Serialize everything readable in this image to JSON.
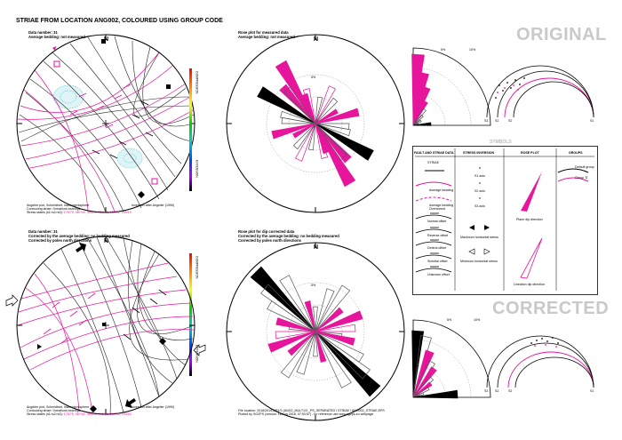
{
  "title": "STRIAE FROM LOCATION ANG002, COLOURED USING GROUP CODE",
  "labels": {
    "original": "ORIGINAL",
    "corrected": "CORRECTED",
    "north": "N",
    "symbols": "SYMBOLS"
  },
  "top_left": {
    "line1": "Data number: 31",
    "line2": "Average bedding: not measured",
    "foot1": "Angelier plot, Schmidtnet, lower hemisphere",
    "foot2": "Contouring striae / lineations bearings",
    "foot3": "Stress states (s1>s2>s3):",
    "foot3b": "175/75, 087/00, 353/13, 351/75, 064/01, 155/13",
    "inversion": "Inversion after Angelier (1990)",
    "compression": "COMPRESSION",
    "extension": "EXTENSION"
  },
  "top_middle": {
    "line1": "Rose plot for measured data",
    "line2": "Average bedding: not measured",
    "ring_label": "5%"
  },
  "bottom_left": {
    "line1": "Data number: 31",
    "line2": "Corrected by the average bedding: no bedding measured",
    "line3": "Corrected by poles north directions",
    "foot1": "Angelier plot, Schmidtnet, lower hemisphere",
    "foot2": "Contouring striae / lineations bearings",
    "foot3": "Stress states (s1>s2>s3):",
    "foot3b": "175/75, 087/00, 353/13, 015/05, 269/05, 109/23",
    "inversion": "Inversion after Angelier (1990)",
    "compression": "COMPRESSION",
    "extension": "EXTENSION"
  },
  "bottom_middle": {
    "line1": "Rose plot for dip corrected data",
    "line2": "Corrected by the average bedding: no bedding measured",
    "line3": "Corrected by poles north directions",
    "ring_label": "5%",
    "file1": "File location: 2018/2019-DR1/2 (ANG2_MULT1/3 _PS_SEPARATED / STRIAE / ANG002_STRIAE.EPS",
    "file2": "Plotted by SG2PS (version: 16 Aug 2018, 07:53:57) - for reference use www.sg2ps.eu webpage"
  },
  "quarter_rose": {
    "top_pct_1": "5%",
    "top_pct_2": "10%",
    "bottom_pct_1": "5%",
    "bottom_pct_2": "10%"
  },
  "arcs": {
    "s3": "S3",
    "s2": "S2",
    "s1": "S1"
  },
  "legend": {
    "col1": "FAULT AND STRIAE DATA",
    "col2": "STRESS INVERSION",
    "col3": "ROSE PLOT",
    "col4": "GROUPS",
    "striae": "STRIAE",
    "avg_bedding": "Average bedding",
    "avg_bedding_ov": "Average bedding Overturned",
    "normal": "Normal offset",
    "reverse": "Reverse offset",
    "dextral": "Dextral offset",
    "sinistral": "Sinistral offset",
    "unknown": "Unknown offset",
    "s1axis": "S1 axis",
    "s2axis": "S2 axis",
    "s3axis": "S3 axis",
    "max_h": "Maximum horizontal stress",
    "min_h": "Minimum horizontal stress",
    "plane_dip": "Plane dip direction",
    "lin_dip": "Lineation dip direction",
    "default_group": "Default group",
    "group_d": "Group 'D'"
  },
  "colors": {
    "magenta": "#e6159b",
    "black": "#000000",
    "cyan_contour": "#7fd6de",
    "grey_text": "#c9c9c9"
  }
}
